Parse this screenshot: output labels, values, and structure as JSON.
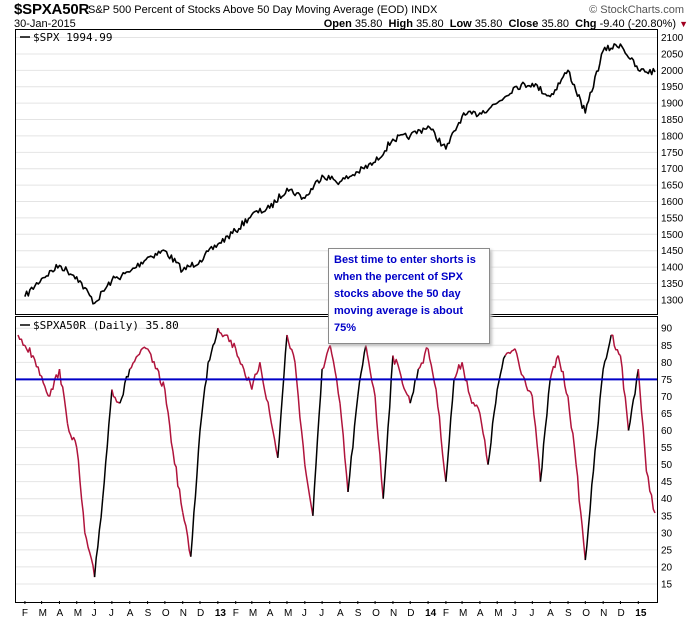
{
  "header": {
    "symbol": "$SPXA50R",
    "description": "S&P 500 Percent of Stocks Above 50 Day Moving Average (EOD)",
    "exchange": "INDX",
    "brand": "© StockCharts.com",
    "date": "30-Jan-2015",
    "open_label": "Open",
    "open": "35.80",
    "high_label": "High",
    "high": "35.80",
    "low_label": "Low",
    "low": "35.80",
    "close_label": "Close",
    "close": "35.80",
    "chg_label": "Chg",
    "chg": "-9.40 (-20.80%)",
    "down_color": "#a00020"
  },
  "annotation": {
    "text": "Best time to enter shorts is when the percent of SPX stocks above the 50 day moving average is about 75%",
    "color": "#0000c8"
  },
  "chart_data": [
    {
      "type": "line",
      "label": "$SPX 1994.99",
      "series_color": "#000000",
      "ylim": [
        1260,
        2120
      ],
      "yticks": [
        1300,
        1350,
        1400,
        1450,
        1500,
        1550,
        1600,
        1650,
        1700,
        1750,
        1800,
        1850,
        1900,
        1950,
        2000,
        2050,
        2100
      ],
      "grid": true,
      "x": [
        "2012-02-01",
        "2012-03-01",
        "2012-04-01",
        "2012-05-01",
        "2012-06-01",
        "2012-07-01",
        "2012-08-01",
        "2012-09-01",
        "2012-10-01",
        "2012-11-01",
        "2012-12-01",
        "2013-01-01",
        "2013-02-01",
        "2013-03-01",
        "2013-04-01",
        "2013-05-01",
        "2013-06-01",
        "2013-07-01",
        "2013-08-01",
        "2013-09-01",
        "2013-10-01",
        "2013-11-01",
        "2013-12-01",
        "2014-01-01",
        "2014-02-01",
        "2014-03-01",
        "2014-04-01",
        "2014-05-01",
        "2014-06-01",
        "2014-07-01",
        "2014-08-01",
        "2014-09-01",
        "2014-10-01",
        "2014-11-01",
        "2014-12-01",
        "2015-01-01",
        "2015-01-30"
      ],
      "values": [
        1310,
        1365,
        1405,
        1370,
        1290,
        1360,
        1385,
        1430,
        1450,
        1390,
        1420,
        1470,
        1510,
        1560,
        1580,
        1640,
        1610,
        1680,
        1660,
        1690,
        1720,
        1790,
        1800,
        1830,
        1760,
        1860,
        1870,
        1900,
        1950,
        1960,
        1920,
        2000,
        1870,
        2060,
        2080,
        2000,
        1995
      ],
      "last_value": 1994.99
    },
    {
      "type": "line",
      "label": "$SPXA50R (Daily) 35.80",
      "series_color": "#b0143c",
      "rising_color": "#000000",
      "ylim": [
        10,
        93
      ],
      "yticks": [
        15,
        20,
        25,
        30,
        35,
        40,
        45,
        50,
        55,
        60,
        65,
        70,
        75,
        80,
        85,
        90
      ],
      "grid": true,
      "x": [
        "2012-01-20",
        "2012-02-01",
        "2012-02-15",
        "2012-03-01",
        "2012-03-15",
        "2012-04-01",
        "2012-04-15",
        "2012-05-01",
        "2012-05-15",
        "2012-06-01",
        "2012-06-15",
        "2012-07-01",
        "2012-07-15",
        "2012-08-01",
        "2012-08-15",
        "2012-09-01",
        "2012-09-15",
        "2012-10-01",
        "2012-10-15",
        "2012-11-01",
        "2012-11-15",
        "2012-12-01",
        "2012-12-15",
        "2013-01-01",
        "2013-01-15",
        "2013-02-01",
        "2013-02-15",
        "2013-03-01",
        "2013-03-15",
        "2013-04-01",
        "2013-04-15",
        "2013-05-01",
        "2013-05-15",
        "2013-06-01",
        "2013-06-15",
        "2013-07-01",
        "2013-07-15",
        "2013-08-01",
        "2013-08-15",
        "2013-09-01",
        "2013-09-15",
        "2013-10-01",
        "2013-10-15",
        "2013-11-01",
        "2013-11-15",
        "2013-12-01",
        "2013-12-15",
        "2014-01-01",
        "2014-01-15",
        "2014-02-01",
        "2014-02-15",
        "2014-03-01",
        "2014-03-15",
        "2014-04-01",
        "2014-04-15",
        "2014-05-01",
        "2014-05-15",
        "2014-06-01",
        "2014-06-15",
        "2014-07-01",
        "2014-07-15",
        "2014-08-01",
        "2014-08-15",
        "2014-09-01",
        "2014-09-15",
        "2014-10-01",
        "2014-10-15",
        "2014-11-01",
        "2014-11-15",
        "2014-12-01",
        "2014-12-15",
        "2015-01-01",
        "2015-01-15",
        "2015-01-30"
      ],
      "values": [
        88,
        85,
        82,
        76,
        70,
        78,
        62,
        55,
        30,
        17,
        40,
        72,
        68,
        78,
        82,
        84,
        78,
        72,
        54,
        36,
        23,
        60,
        80,
        90,
        88,
        84,
        78,
        72,
        80,
        65,
        52,
        88,
        80,
        50,
        35,
        78,
        85,
        68,
        42,
        70,
        85,
        70,
        40,
        82,
        76,
        68,
        78,
        84,
        72,
        45,
        75,
        80,
        70,
        65,
        50,
        72,
        82,
        84,
        76,
        70,
        45,
        75,
        82,
        70,
        50,
        22,
        48,
        78,
        88,
        82,
        60,
        78,
        48,
        35.8
      ],
      "last_value": 35.8,
      "reference_line": {
        "value": 75,
        "color": "#0000c8"
      }
    }
  ],
  "xaxis": {
    "labels": [
      "F",
      "M",
      "A",
      "M",
      "J",
      "J",
      "A",
      "S",
      "O",
      "N",
      "D",
      "13",
      "F",
      "M",
      "A",
      "M",
      "J",
      "J",
      "A",
      "S",
      "O",
      "N",
      "D",
      "14",
      "F",
      "M",
      "A",
      "M",
      "J",
      "J",
      "A",
      "S",
      "O",
      "N",
      "D",
      "15"
    ],
    "bold": [
      "13",
      "14",
      "15"
    ]
  }
}
